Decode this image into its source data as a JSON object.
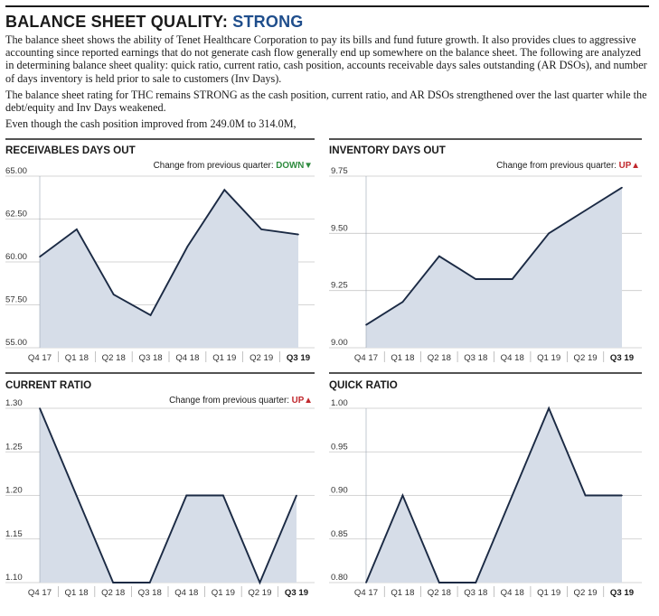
{
  "header": {
    "title_main": "BALANCE SHEET QUALITY: ",
    "title_rating": "STRONG",
    "paragraph1": "The balance sheet shows the ability of Tenet Healthcare Corporation to pay its bills and fund future growth. It also provides clues to aggressive accounting since reported earnings that do not generate cash flow generally end up somewhere on the balance sheet. The following are analyzed in determining balance sheet quality: quick ratio, current ratio, cash position, accounts receivable days sales outstanding (AR DSOs), and number of days inventory is held prior to sale to customers (Inv Days).",
    "paragraph2": "The balance sheet rating for THC remains STRONG as the cash position, current ratio, and AR DSOs strengthened over the last quarter while the debt/equity and Inv Days weakened.",
    "paragraph3": "Even though the cash position improved from 249.0M to 314.0M,"
  },
  "colors": {
    "fill": "#d6dde8",
    "line": "#1b2a44",
    "grid": "#c8c8c8",
    "down": "#2e8b3e",
    "up": "#c0282d"
  },
  "chart_data": [
    {
      "type": "area",
      "title": "RECEIVABLES DAYS OUT",
      "change_label": "Change from previous quarter: ",
      "change_value": "DOWN",
      "change_arrow": "▼",
      "change_dir": "down",
      "categories": [
        "Q4 17",
        "Q1 18",
        "Q2 18",
        "Q3 18",
        "Q4 18",
        "Q1 19",
        "Q2 19",
        "Q3 19"
      ],
      "values": [
        60.3,
        61.9,
        58.1,
        56.9,
        60.9,
        64.2,
        61.9,
        61.6
      ],
      "yticks": [
        "65.00",
        "62.50",
        "60.00",
        "57.50",
        "55.00"
      ],
      "ylim": [
        55,
        65
      ]
    },
    {
      "type": "area",
      "title": "INVENTORY DAYS OUT",
      "change_label": "Change from previous quarter: ",
      "change_value": "UP",
      "change_arrow": "▲",
      "change_dir": "up",
      "categories": [
        "Q4 17",
        "Q1 18",
        "Q2 18",
        "Q3 18",
        "Q4 18",
        "Q1 19",
        "Q2 19",
        "Q3 19"
      ],
      "values": [
        9.1,
        9.2,
        9.4,
        9.3,
        9.3,
        9.5,
        9.6,
        9.7
      ],
      "yticks": [
        "9.75",
        "9.50",
        "9.25",
        "9.00"
      ],
      "ylim": [
        9.0,
        9.75
      ]
    },
    {
      "type": "area",
      "title": "CURRENT RATIO",
      "change_label": "Change from previous quarter: ",
      "change_value": "UP",
      "change_arrow": "▲",
      "change_dir": "up",
      "categories": [
        "Q4 17",
        "Q1 18",
        "Q2 18",
        "Q3 18",
        "Q4 18",
        "Q1 19",
        "Q2 19",
        "Q3 19"
      ],
      "values": [
        1.3,
        1.2,
        1.1,
        1.1,
        1.2,
        1.2,
        1.1,
        1.2
      ],
      "yticks": [
        "1.30",
        "1.25",
        "1.20",
        "1.15",
        "1.10"
      ],
      "ylim": [
        1.1,
        1.3
      ]
    },
    {
      "type": "area",
      "title": "QUICK RATIO",
      "change_label": "",
      "change_value": "",
      "change_arrow": "",
      "change_dir": "",
      "categories": [
        "Q4 17",
        "Q1 18",
        "Q2 18",
        "Q3 18",
        "Q4 18",
        "Q1 19",
        "Q2 19",
        "Q3 19"
      ],
      "values": [
        0.8,
        0.9,
        0.8,
        0.8,
        0.9,
        1.0,
        0.9,
        0.9
      ],
      "yticks": [
        "1.00",
        "0.95",
        "0.90",
        "0.85",
        "0.80"
      ],
      "ylim": [
        0.8,
        1.0
      ]
    }
  ]
}
